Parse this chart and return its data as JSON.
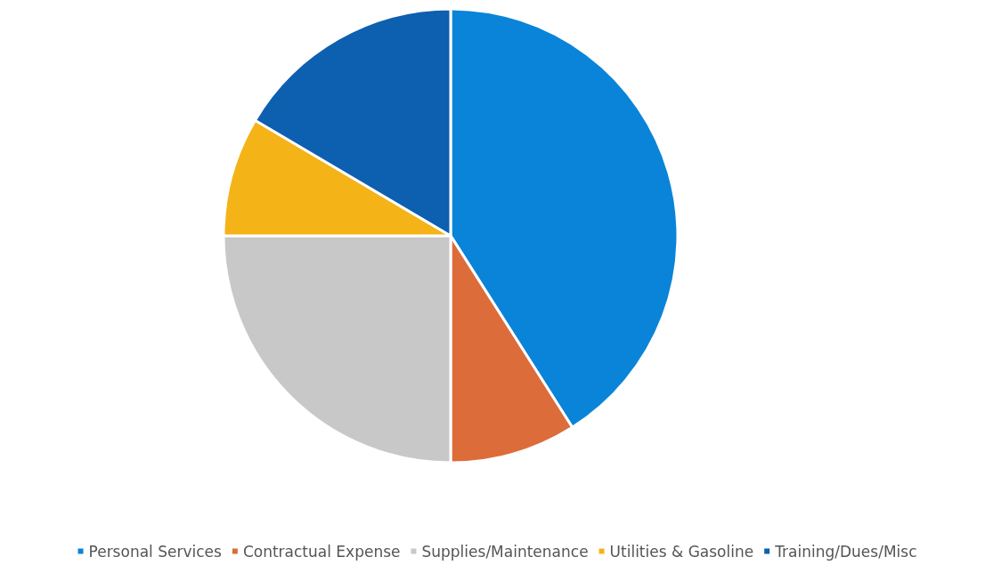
{
  "chart_data": {
    "type": "pie",
    "categories": [
      "Personal Services",
      "Contractual Expense",
      "Supplies/Maintenance",
      "Utilities & Gasoline",
      "Training/Dues/Misc"
    ],
    "values": [
      41,
      9,
      25,
      8.5,
      16.5
    ],
    "colors": [
      "#0a84d8",
      "#dd6c3b",
      "#c8c8c8",
      "#f4b418",
      "#0d5fb0"
    ],
    "legend": "bottom"
  }
}
